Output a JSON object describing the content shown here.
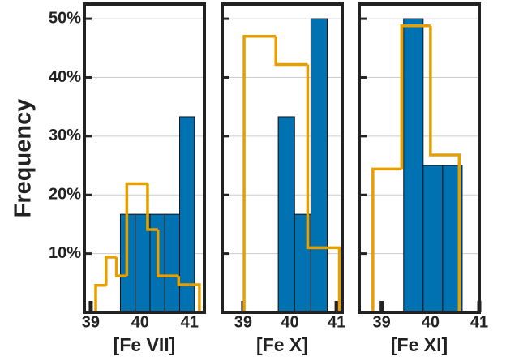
{
  "chart_data": [
    {
      "type": "histogram",
      "xlabel": "[Fe VII]",
      "ylabel": "Frequency",
      "show_ytick_labels": true,
      "xlim": [
        38.87,
        41.3
      ],
      "xticks": [
        39,
        40,
        41
      ],
      "ylim": [
        0,
        52.5
      ],
      "yticks": [
        {
          "value": 10,
          "label": "10%"
        },
        {
          "value": 20,
          "label": "20%"
        },
        {
          "value": 30,
          "label": "30%"
        },
        {
          "value": 40,
          "label": "40%"
        },
        {
          "value": 50,
          "label": "50%"
        }
      ],
      "grid": true,
      "series": [
        {
          "style": "bar",
          "color": "#0072b2",
          "bins": [
            39.6,
            39.9,
            40.2,
            40.5,
            40.8,
            41.1
          ],
          "values": [
            16.7,
            16.7,
            16.7,
            16.7,
            33.3
          ]
        },
        {
          "style": "step",
          "color": "#e69f00",
          "bins": [
            39.1,
            39.31,
            39.52,
            39.73,
            39.94,
            40.15,
            40.36,
            40.57,
            40.78,
            40.99,
            41.2
          ],
          "values": [
            4.6,
            9.4,
            6.2,
            21.9,
            21.9,
            14.1,
            6.2,
            6.2,
            4.7,
            4.7
          ]
        }
      ]
    },
    {
      "type": "histogram",
      "xlabel": "[Fe X]",
      "show_ytick_labels": false,
      "xlim": [
        38.55,
        41.12
      ],
      "xticks": [
        39,
        40,
        41
      ],
      "ylim": [
        0,
        52.5
      ],
      "yticks": [
        10,
        20,
        30,
        40,
        50
      ],
      "grid": true,
      "series": [
        {
          "style": "bar",
          "color": "#0072b2",
          "bins": [
            39.75,
            40.1,
            40.45,
            40.8
          ],
          "values": [
            33.3,
            16.7,
            50
          ]
        },
        {
          "style": "step",
          "color": "#e69f00",
          "bins": [
            39.02,
            39.7,
            40.38,
            41.06
          ],
          "values": [
            47,
            42.2,
            11
          ]
        }
      ]
    },
    {
      "type": "histogram",
      "xlabel": "[Fe XI]",
      "show_ytick_labels": false,
      "xlim": [
        38.54,
        41.0
      ],
      "xticks": [
        39,
        40,
        41
      ],
      "ylim": [
        0,
        52.5
      ],
      "yticks": [
        10,
        20,
        30,
        40,
        50
      ],
      "grid": true,
      "series": [
        {
          "style": "bar",
          "color": "#0072b2",
          "bins": [
            39.45,
            39.85,
            40.25,
            40.65
          ],
          "values": [
            50,
            25,
            25
          ]
        },
        {
          "style": "step",
          "color": "#e69f00",
          "bins": [
            38.82,
            39.41,
            40.0,
            40.59
          ],
          "values": [
            24.4,
            48.8,
            26.8
          ]
        }
      ]
    }
  ]
}
